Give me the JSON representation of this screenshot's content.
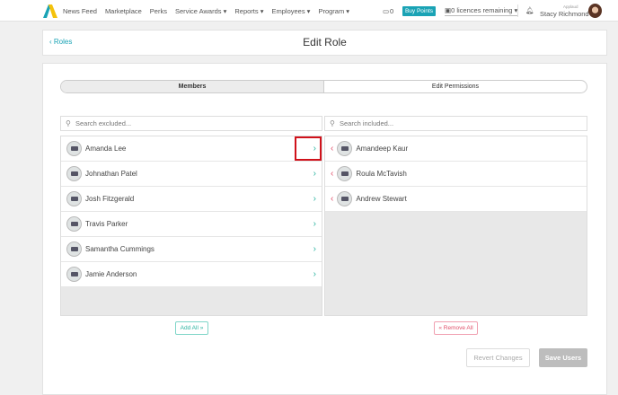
{
  "header": {
    "nav": [
      "News Feed",
      "Marketplace",
      "Perks",
      "Service Awards ▾",
      "Reports ▾",
      "Employees ▾",
      "Program ▾"
    ],
    "cart_count": "0",
    "buy_points": "Buy Points",
    "licences": "0 licences remaining ▾",
    "user_role": "Applaud",
    "user_name": "Stacy Richmond"
  },
  "page": {
    "back_label": "Roles",
    "title": "Edit Role"
  },
  "tabs": [
    "Members",
    "Edit Permissions"
  ],
  "excluded": {
    "placeholder": "Search excluded...",
    "items": [
      "Amanda Lee",
      "Johnathan Patel",
      "Josh Fitzgerald",
      "Travis Parker",
      "Samantha Cummings",
      "Jamie Anderson"
    ],
    "action": "Add All »"
  },
  "included": {
    "placeholder": "Search included...",
    "items": [
      "Amandeep Kaur",
      "Roula McTavish",
      "Andrew Stewart"
    ],
    "action": "« Remove All"
  },
  "footer": {
    "revert": "Revert Changes",
    "save": "Save Users"
  },
  "colors": {
    "accent": "#1aa3b5",
    "add": "#2bb3a0",
    "remove": "#e0506a",
    "highlight": "#d0121b"
  }
}
